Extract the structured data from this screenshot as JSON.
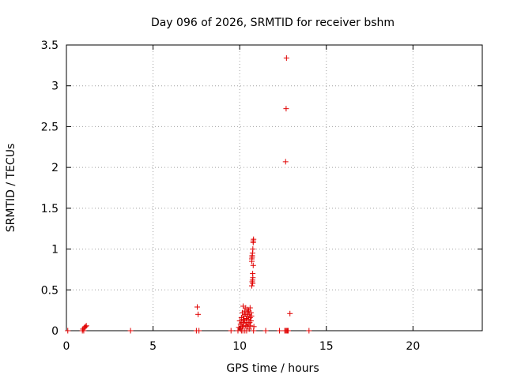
{
  "chart_data": {
    "type": "scatter",
    "title": "Day 096 of 2026, SRMTID for receiver bshm",
    "xlabel": "GPS time / hours",
    "ylabel": "SRMTID / TECUs",
    "xlim": [
      0,
      24
    ],
    "ylim": [
      0,
      3.5
    ],
    "x_ticks": [
      0,
      5,
      10,
      15,
      20
    ],
    "x_tick_labels": [
      "0",
      "5",
      "10",
      "15",
      "20"
    ],
    "y_ticks": [
      0,
      0.5,
      1,
      1.5,
      2,
      2.5,
      3,
      3.5
    ],
    "y_tick_labels": [
      "0",
      "0.5",
      "1",
      "1.5",
      "2",
      "2.5",
      "3",
      "3.5"
    ],
    "grid": true,
    "marker": "plus",
    "series": [
      {
        "color": "#e00000",
        "x": [
          0.08,
          0.92,
          0.95,
          1.0,
          1.05,
          1.1,
          1.15,
          3.7,
          7.5,
          7.55,
          7.6,
          7.65,
          9.5,
          9.9,
          9.95,
          10.0,
          10.05,
          10.05,
          10.1,
          10.1,
          10.12,
          10.15,
          10.15,
          10.18,
          10.2,
          10.2,
          10.22,
          10.25,
          10.25,
          10.28,
          10.3,
          10.3,
          10.32,
          10.35,
          10.35,
          10.38,
          10.4,
          10.4,
          10.42,
          10.45,
          10.45,
          10.48,
          10.5,
          10.5,
          10.52,
          10.55,
          10.55,
          10.58,
          10.6,
          10.6,
          10.62,
          10.65,
          10.65,
          10.68,
          10.7,
          10.72,
          10.75,
          10.75,
          10.78,
          10.7,
          10.72,
          10.74,
          10.76,
          10.78,
          10.8,
          10.7,
          10.72,
          10.74,
          10.76,
          10.78,
          10.8,
          10.82,
          11.5,
          12.3,
          12.6,
          12.65,
          12.7,
          12.75,
          12.8,
          12.9,
          14.0,
          12.65,
          12.68,
          12.7
        ],
        "y": [
          0.0,
          0.0,
          0.02,
          0.0,
          0.04,
          0.05,
          0.06,
          0.0,
          0.0,
          0.29,
          0.2,
          0.0,
          0.0,
          0.0,
          0.04,
          0.12,
          0.02,
          0.08,
          0.0,
          0.16,
          0.1,
          0.05,
          0.22,
          0.0,
          0.14,
          0.3,
          0.06,
          0.18,
          0.1,
          0.24,
          0.0,
          0.12,
          0.2,
          0.06,
          0.28,
          0.15,
          0.0,
          0.1,
          0.22,
          0.05,
          0.18,
          0.26,
          0.08,
          0.14,
          0.24,
          0.02,
          0.2,
          0.1,
          0.16,
          0.28,
          0.06,
          0.12,
          0.22,
          0.18,
          0.55,
          0.6,
          0.58,
          0.7,
          0.8,
          0.88,
          0.92,
          0.95,
          1.0,
          1.08,
          1.12,
          0.85,
          0.9,
          0.62,
          0.65,
          1.1,
          0.0,
          0.05,
          0.0,
          0.0,
          0.0,
          0.0,
          0.0,
          0.0,
          0.0,
          0.21,
          0.0,
          2.07,
          2.72,
          3.34
        ]
      }
    ]
  }
}
